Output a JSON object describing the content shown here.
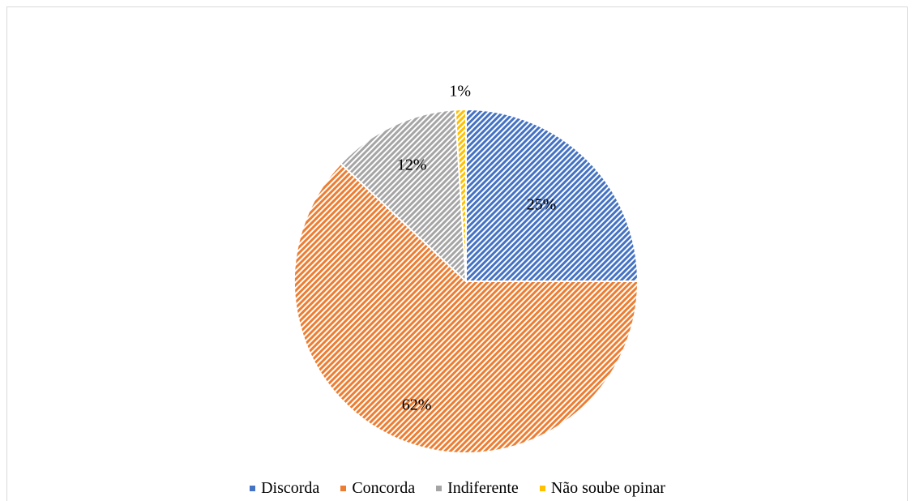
{
  "chart_data": {
    "type": "pie",
    "title": "",
    "legend_position": "bottom",
    "categories": [
      "Discorda",
      "Concorda",
      "Indiferente",
      "Não soube opinar"
    ],
    "values": [
      25,
      62,
      12,
      1
    ],
    "labels": [
      "25%",
      "62%",
      "12%",
      "1%"
    ],
    "colors": [
      "#4472C4",
      "#ED7D31",
      "#A5A5A5",
      "#FFC000"
    ],
    "fill_pattern": "diagonal-stripes"
  }
}
